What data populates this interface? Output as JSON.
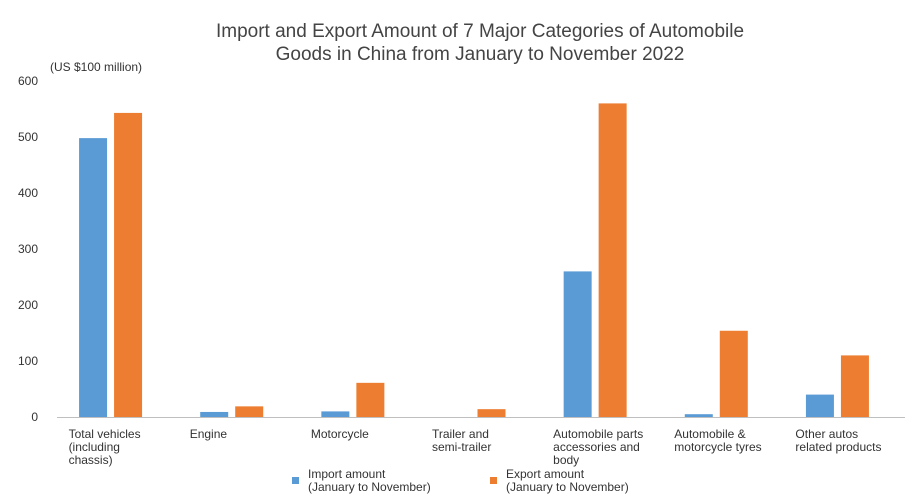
{
  "chart_data": {
    "type": "bar",
    "title": "Import and Export Amount of 7 Major Categories of Automobile\nGoods in China from January to November 2022",
    "unit_label": "(US $100 million)",
    "ylim": [
      0,
      600
    ],
    "yticks": [
      0,
      100,
      200,
      300,
      400,
      500,
      600
    ],
    "grid": false,
    "legend_position": "bottom",
    "categories": [
      "Total vehicles (including chassis)",
      "Engine",
      "Motorcycle",
      "Trailer and semi-trailer",
      "Automobile parts accessories and body",
      "Automobile & motorcycle tyres",
      "Other autos related products"
    ],
    "category_label_lines": [
      [
        "Total vehicles",
        "(including",
        "chassis)"
      ],
      [
        "Engine"
      ],
      [
        "Motorcycle"
      ],
      [
        "Trailer and",
        "semi-trailer"
      ],
      [
        "Automobile parts",
        "accessories and",
        "body"
      ],
      [
        "Automobile &",
        "motorcycle tyres"
      ],
      [
        "Other autos",
        "related products"
      ]
    ],
    "series": [
      {
        "name": "Import amount\n(January to November)",
        "color": "#5b9bd5",
        "values": [
          498,
          9,
          10,
          0,
          260,
          5,
          40
        ]
      },
      {
        "name": "Export amount\n(January to November)",
        "color": "#ed7d31",
        "values": [
          543,
          19,
          61,
          14,
          560,
          154,
          110
        ]
      }
    ]
  }
}
